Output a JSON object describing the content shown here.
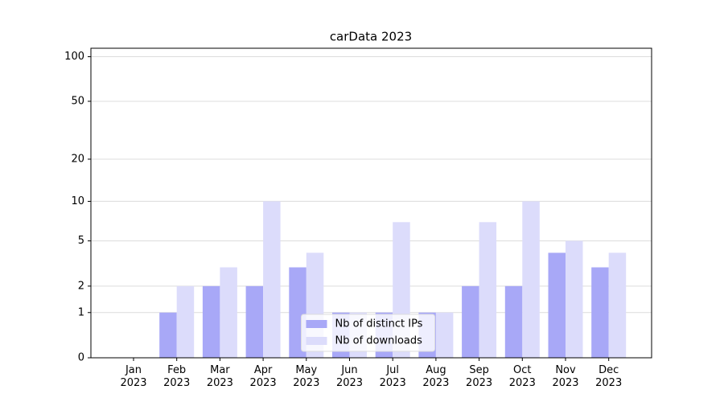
{
  "chart_data": {
    "type": "bar",
    "title": "carData 2023",
    "categories": [
      "Jan\n2023",
      "Feb\n2023",
      "Mar\n2023",
      "Apr\n2023",
      "May\n2023",
      "Jun\n2023",
      "Jul\n2023",
      "Aug\n2023",
      "Sep\n2023",
      "Oct\n2023",
      "Nov\n2023",
      "Dec\n2023"
    ],
    "series": [
      {
        "name": "Nb of distinct IPs",
        "color": "#a8a8f7",
        "values": [
          0,
          1,
          2,
          2,
          3,
          1,
          1,
          1,
          2,
          2,
          4,
          3
        ]
      },
      {
        "name": "Nb of downloads",
        "color": "#dcdcfb",
        "values": [
          0,
          2,
          3,
          10,
          4,
          1,
          7,
          1,
          7,
          10,
          5,
          4
        ]
      }
    ],
    "yscale": "log1p",
    "ylim": [
      0,
      114
    ],
    "yticks": [
      0,
      1,
      2,
      5,
      10,
      20,
      50,
      100
    ],
    "grid": true,
    "legend": "lower center"
  }
}
